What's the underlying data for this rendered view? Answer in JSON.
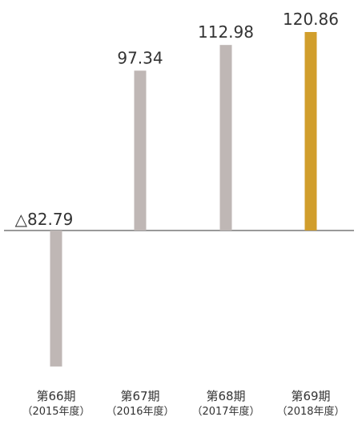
{
  "chart_data": {
    "type": "bar",
    "categories": [
      "第66期",
      "第67期",
      "第68期",
      "第69期"
    ],
    "periods": [
      "（2015年度）",
      "（2016年度）",
      "（2017年度）",
      "（2018年度）"
    ],
    "values": [
      -82.79,
      97.34,
      112.98,
      120.86
    ],
    "value_labels": [
      "△82.79",
      "97.34",
      "112.98",
      "120.86"
    ],
    "title": "",
    "xlabel": "",
    "ylabel": "",
    "ylim": [
      -82.79,
      120.86
    ],
    "grid": false,
    "legend": "none",
    "colors": {
      "bar_default": "#bfb7b5",
      "bar_highlight": "#d19e2c",
      "axis": "#333333",
      "text": "#333333"
    },
    "highlight_index": 3
  }
}
